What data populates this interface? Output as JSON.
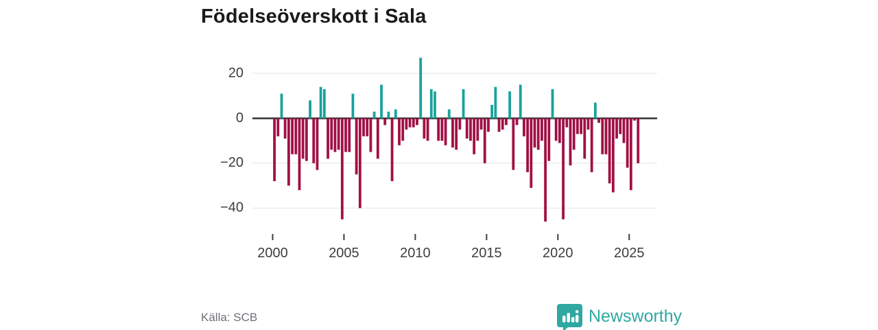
{
  "title": "Födelseöverskott i Sala",
  "source": "Källa: SCB",
  "branding": {
    "name": "Newsworthy",
    "color": "#2fa8a1"
  },
  "colors": {
    "positive_bar": "#1aa29b",
    "negative_bar": "#a11044",
    "grid_line": "#e8e8e8",
    "zero_line": "#333333",
    "axis_text": "#3d3d3d",
    "title_text": "#1a1a1a",
    "source_text": "#6e7178",
    "background": "#ffffff"
  },
  "chart_data": {
    "type": "bar",
    "title": "Födelseöverskott i Sala",
    "frequency": "quarterly",
    "start_period": "2000-Q1",
    "end_period": "2025-Q3",
    "values": [
      -28,
      -8,
      11,
      -9,
      -30,
      -16,
      -16,
      -32,
      -18,
      -19,
      8,
      -20,
      -23,
      14,
      13,
      -18,
      -14,
      -15,
      -14,
      -45,
      -15,
      -15,
      11,
      -25,
      -40,
      -8,
      -8,
      -15,
      3,
      -18,
      15,
      -3,
      3,
      -28,
      4,
      -12,
      -10,
      -5,
      -4,
      -4,
      -3,
      27,
      -9,
      -10,
      13,
      12,
      -10,
      -10,
      -12,
      4,
      -13,
      -14,
      -5,
      13,
      -9,
      -10,
      -16,
      -10,
      -5,
      -20,
      -6,
      6,
      14,
      -6,
      -5,
      -3,
      12,
      -23,
      -3,
      15,
      -8,
      -24,
      -31,
      -13,
      -14,
      -10,
      -46,
      -19,
      13,
      -10,
      -11,
      -45,
      -4,
      -21,
      -14,
      -7,
      -7,
      -18,
      -5,
      -24,
      7,
      -2,
      -16,
      -16,
      -29,
      -33,
      -9,
      -7,
      -11,
      -22,
      -32,
      -1,
      -20
    ],
    "y_ticks": [
      20,
      0,
      -20,
      -40
    ],
    "y_tick_labels": [
      "20",
      "0",
      "−20",
      "−40"
    ],
    "x_tick_years": [
      2000,
      2005,
      2010,
      2015,
      2020,
      2025
    ],
    "ylim": [
      -48,
      29
    ],
    "grid": true,
    "legend": false
  }
}
